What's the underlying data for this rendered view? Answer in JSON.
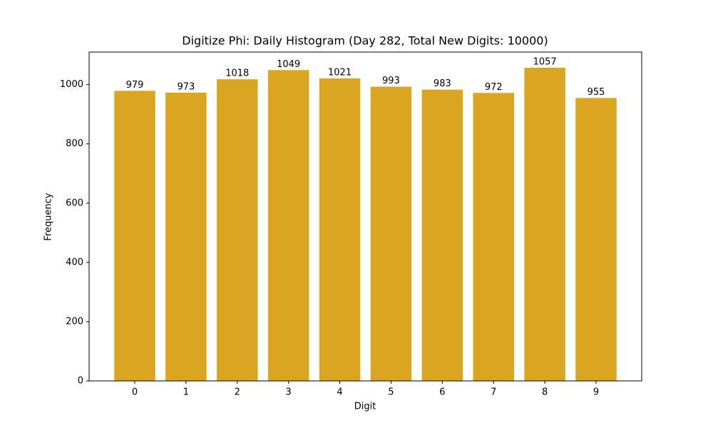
{
  "chart_data": {
    "type": "bar",
    "title": "Digitize Phi: Daily Histogram (Day 282, Total New Digits: 10000)",
    "x_label": "Digit",
    "y_label": "Frequency",
    "categories": [
      "0",
      "1",
      "2",
      "3",
      "4",
      "5",
      "6",
      "7",
      "8",
      "9"
    ],
    "values": [
      979,
      973,
      1018,
      1049,
      1021,
      993,
      983,
      972,
      1057,
      955
    ],
    "color": "#daa520",
    "ylim": [
      0,
      1109.85
    ],
    "yticks": [
      0,
      200,
      400,
      600,
      800,
      1000
    ]
  }
}
